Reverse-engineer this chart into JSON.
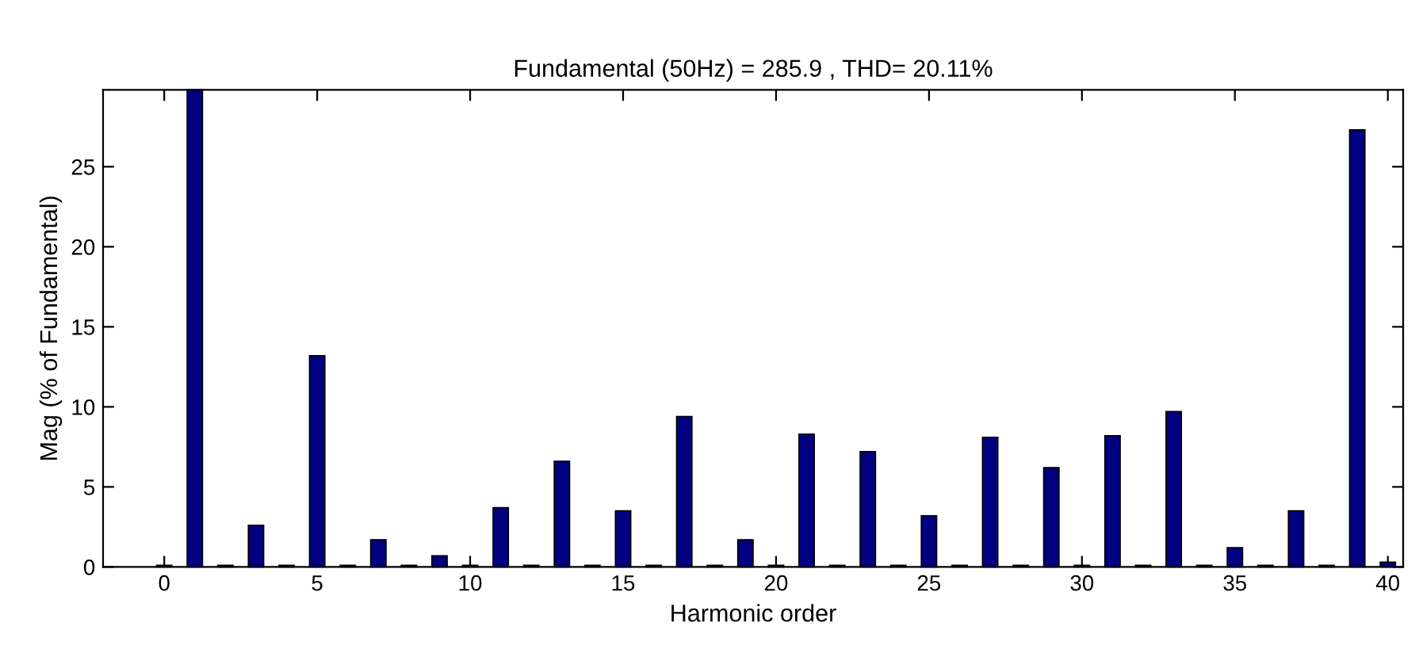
{
  "chart_data": {
    "type": "bar",
    "title": "Fundamental (50Hz) = 285.9 , THD= 20.11%",
    "xlabel": "Harmonic order",
    "ylabel": "Mag (% of Fundamental)",
    "x": [
      0,
      1,
      2,
      3,
      4,
      5,
      6,
      7,
      8,
      9,
      10,
      11,
      12,
      13,
      14,
      15,
      16,
      17,
      18,
      19,
      20,
      21,
      22,
      23,
      24,
      25,
      26,
      27,
      28,
      29,
      30,
      31,
      32,
      33,
      34,
      35,
      36,
      37,
      38,
      39,
      40
    ],
    "values": [
      0.1,
      29.8,
      0.1,
      2.6,
      0.1,
      13.2,
      0.1,
      1.7,
      0.1,
      0.7,
      0.1,
      3.7,
      0.1,
      6.6,
      0.1,
      3.5,
      0.1,
      9.4,
      0.1,
      1.7,
      0.1,
      8.3,
      0.1,
      7.2,
      0.1,
      3.2,
      0.1,
      8.1,
      0.1,
      6.2,
      0.1,
      8.2,
      0.1,
      9.7,
      0.1,
      1.2,
      0.1,
      3.5,
      0.1,
      27.3,
      0.3
    ],
    "color": "#000080",
    "xlim": [
      -2,
      40.5
    ],
    "ylim": [
      0,
      29.8
    ],
    "xticks": [
      0,
      5,
      10,
      15,
      20,
      25,
      30,
      35,
      40
    ],
    "yticks": [
      0,
      5,
      10,
      15,
      20,
      25
    ],
    "grid": false,
    "legend": false
  }
}
